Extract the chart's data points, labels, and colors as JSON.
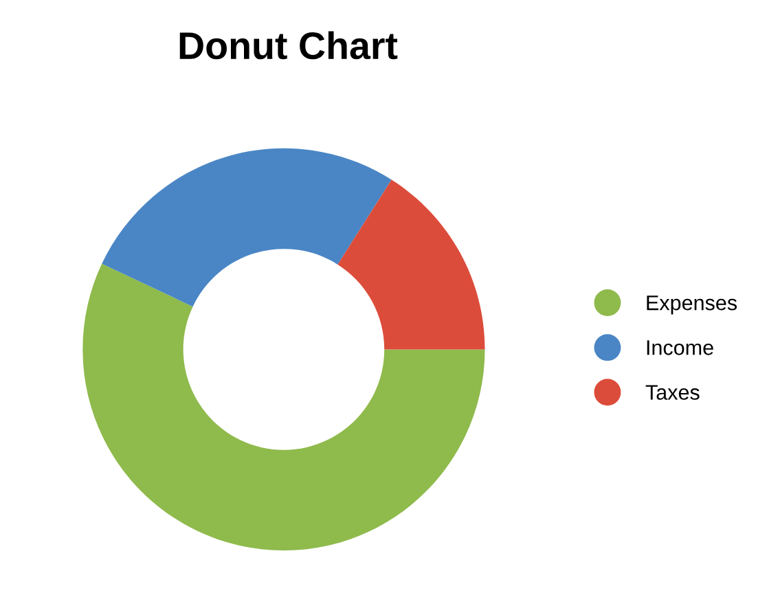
{
  "chart_data": {
    "type": "donut",
    "title": "Donut Chart",
    "categories": [
      "Expenses",
      "Income",
      "Taxes"
    ],
    "values": [
      57,
      27,
      16
    ],
    "colors": [
      "#8fba4c",
      "#4a86c5",
      "#dc4c3a"
    ],
    "legend": "right"
  }
}
